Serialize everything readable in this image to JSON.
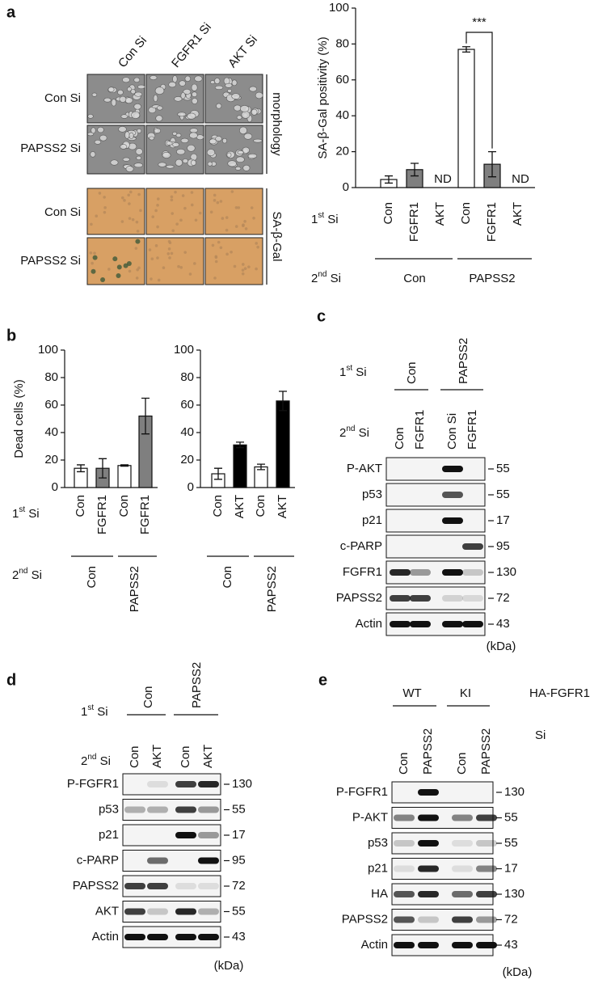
{
  "panel_letters": [
    "a",
    "b",
    "c",
    "d",
    "e"
  ],
  "images": {
    "columns": [
      "Con Si",
      "FGFR1 Si",
      "AKT Si"
    ],
    "rows": [
      "Con Si",
      "PAPSS2 Si",
      "Con Si",
      "PAPSS2 Si"
    ],
    "sections": [
      "morphology",
      "SA-β-Gal"
    ]
  },
  "chart_data": [
    {
      "type": "bar",
      "y_label": "SA-β-Gal positivity (%)",
      "categories": [
        "Con",
        "FGFR1",
        "AKT",
        "Con",
        "FGFR1",
        "AKT"
      ],
      "values": [
        4.5,
        10,
        null,
        77,
        13,
        null
      ],
      "errors": [
        2,
        3.5,
        null,
        1.5,
        7,
        null
      ],
      "value_labels": [
        null,
        null,
        "ND",
        null,
        null,
        "ND"
      ],
      "colors": [
        "#ffffff",
        "#7f7f7f",
        null,
        "#ffffff",
        "#7f7f7f",
        null
      ],
      "ylim": [
        0,
        100
      ],
      "yticks": [
        0,
        20,
        40,
        60,
        80,
        100
      ],
      "row_label": "1st Si",
      "group_label": "2nd Si",
      "groups": [
        "Con",
        "PAPSS2"
      ],
      "significance": "***"
    },
    {
      "type": "bar",
      "y_label": "Dead cells (%)",
      "categories": [
        "Con",
        "FGFR1",
        "Con",
        "FGFR1"
      ],
      "values": [
        14,
        14,
        16,
        52
      ],
      "errors": [
        2.5,
        7,
        0.5,
        13
      ],
      "colors": [
        "#ffffff",
        "#7f7f7f",
        "#ffffff",
        "#7f7f7f"
      ],
      "ylim": [
        0,
        100
      ],
      "yticks": [
        0,
        20,
        40,
        60,
        80,
        100
      ],
      "row_label": "1st Si",
      "group_label": "2nd Si",
      "groups": [
        "Con",
        "PAPSS2"
      ]
    },
    {
      "type": "bar",
      "categories": [
        "Con",
        "AKT",
        "Con",
        "AKT"
      ],
      "values": [
        10,
        31,
        15,
        63
      ],
      "errors": [
        4,
        2,
        2,
        7
      ],
      "colors": [
        "#ffffff",
        "#000000",
        "#ffffff",
        "#000000"
      ],
      "ylim": [
        0,
        100
      ],
      "yticks": [
        0,
        20,
        40,
        60,
        80,
        100
      ],
      "groups": [
        "Con",
        "PAPSS2"
      ]
    }
  ],
  "blots": [
    {
      "group_label": "1st Si",
      "groups": [
        "Con",
        "PAPSS2"
      ],
      "lane_label": "2nd Si",
      "lanes": [
        "Con",
        "FGFR1",
        "Con Si",
        "FGFR1"
      ],
      "proteins": [
        "P-AKT",
        "p53",
        "p21",
        "c-PARP",
        "FGFR1",
        "PAPSS2",
        "Actin"
      ],
      "mw": [
        55,
        55,
        17,
        95,
        130,
        72,
        43
      ],
      "unit": "(kDa)"
    },
    {
      "group_label": "1st Si",
      "groups": [
        "Con",
        "PAPSS2"
      ],
      "lane_label": "2nd Si",
      "lanes": [
        "Con",
        "AKT",
        "Con",
        "AKT"
      ],
      "proteins": [
        "P-FGFR1",
        "p53",
        "p21",
        "c-PARP",
        "PAPSS2",
        "AKT",
        "Actin"
      ],
      "mw": [
        130,
        55,
        17,
        95,
        72,
        55,
        43
      ],
      "unit": "(kDa)"
    },
    {
      "group_label": "HA-FGFR1",
      "groups": [
        "WT",
        "KI"
      ],
      "lane_label": "Si",
      "lanes": [
        "Con",
        "PAPSS2",
        "Con",
        "PAPSS2"
      ],
      "proteins": [
        "P-FGFR1",
        "P-AKT",
        "p53",
        "p21",
        "HA",
        "PAPSS2",
        "Actin"
      ],
      "mw": [
        130,
        55,
        55,
        17,
        130,
        72,
        43
      ],
      "unit": "(kDa)"
    }
  ]
}
